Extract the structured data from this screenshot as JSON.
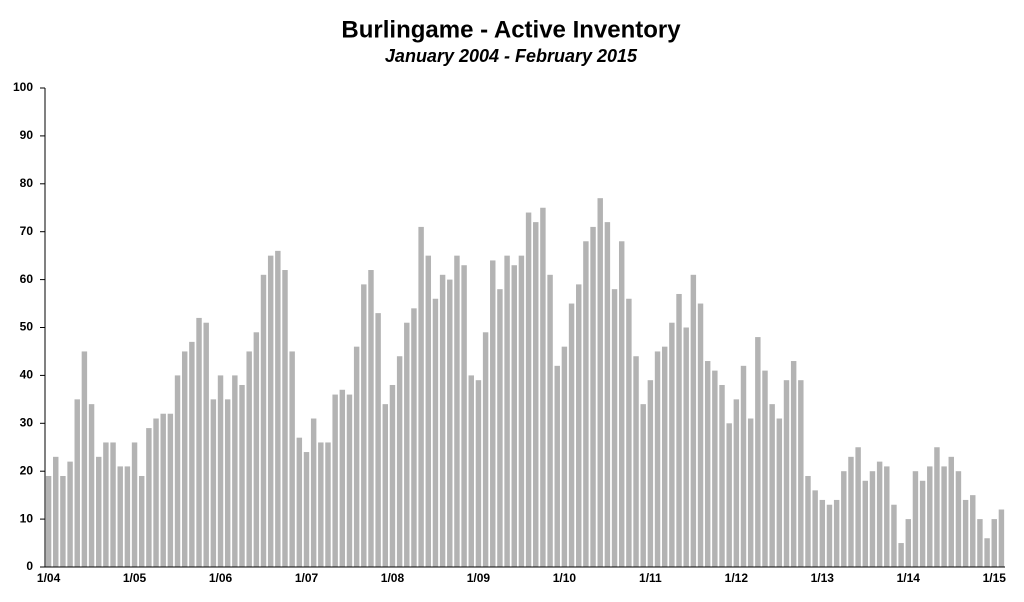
{
  "chart_data": {
    "type": "bar",
    "title": "Burlingame - Active Inventory",
    "subtitle": "January 2004 - February 2015",
    "categories": [
      "1/04",
      null,
      null,
      null,
      null,
      null,
      null,
      null,
      null,
      null,
      null,
      null,
      "1/05",
      null,
      null,
      null,
      null,
      null,
      null,
      null,
      null,
      null,
      null,
      null,
      "1/06",
      null,
      null,
      null,
      null,
      null,
      null,
      null,
      null,
      null,
      null,
      null,
      "1/07",
      null,
      null,
      null,
      null,
      null,
      null,
      null,
      null,
      null,
      null,
      null,
      "1/08",
      null,
      null,
      null,
      null,
      null,
      null,
      null,
      null,
      null,
      null,
      null,
      "1/09",
      null,
      null,
      null,
      null,
      null,
      null,
      null,
      null,
      null,
      null,
      null,
      "1/10",
      null,
      null,
      null,
      null,
      null,
      null,
      null,
      null,
      null,
      null,
      null,
      "1/11",
      null,
      null,
      null,
      null,
      null,
      null,
      null,
      null,
      null,
      null,
      null,
      "1/12",
      null,
      null,
      null,
      null,
      null,
      null,
      null,
      null,
      null,
      null,
      null,
      "1/13",
      null,
      null,
      null,
      null,
      null,
      null,
      null,
      null,
      null,
      null,
      null,
      "1/14",
      null,
      null,
      null,
      null,
      null,
      null,
      null,
      null,
      null,
      null,
      null,
      "1/15",
      null
    ],
    "values": [
      19,
      23,
      19,
      22,
      35,
      45,
      34,
      23,
      26,
      26,
      21,
      21,
      26,
      19,
      29,
      31,
      32,
      32,
      40,
      45,
      47,
      52,
      51,
      35,
      40,
      35,
      40,
      38,
      45,
      49,
      61,
      65,
      66,
      62,
      45,
      27,
      24,
      31,
      26,
      26,
      36,
      37,
      36,
      46,
      59,
      62,
      53,
      34,
      38,
      44,
      51,
      54,
      71,
      65,
      56,
      61,
      60,
      65,
      63,
      40,
      39,
      49,
      64,
      58,
      65,
      63,
      65,
      74,
      72,
      75,
      61,
      42,
      46,
      55,
      59,
      68,
      71,
      77,
      72,
      58,
      68,
      56,
      44,
      34,
      39,
      45,
      46,
      51,
      57,
      50,
      61,
      55,
      43,
      41,
      38,
      30,
      35,
      42,
      31,
      48,
      41,
      34,
      31,
      39,
      43,
      39,
      19,
      16,
      14,
      13,
      14,
      20,
      23,
      25,
      18,
      20,
      22,
      21,
      13,
      5,
      10,
      20,
      18,
      21,
      25,
      21,
      23,
      20,
      14,
      15,
      10,
      6,
      10,
      12
    ],
    "color": "#b3b3b3",
    "ylim": [
      0,
      100
    ],
    "yticks": [
      0,
      10,
      20,
      30,
      40,
      50,
      60,
      70,
      80,
      90,
      100
    ],
    "grid": false
  }
}
